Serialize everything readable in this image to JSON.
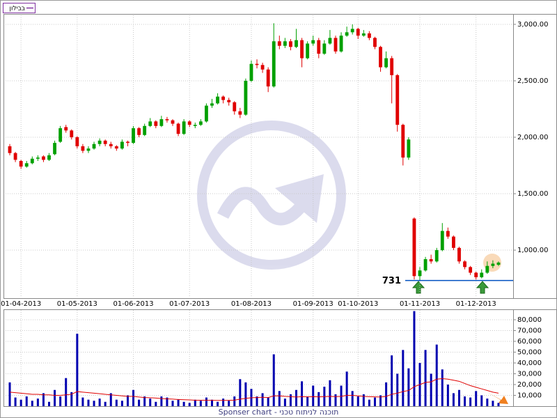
{
  "chart_data": [
    {
      "type": "candlestick",
      "series": [
        {
          "name": "בבילון",
          "up_color": "#00a000",
          "down_color": "#e00000",
          "legend_color": "#8030a0",
          "ohlc": [
            [
              1920,
              1940,
              1840,
              1860
            ],
            [
              1860,
              1870,
              1780,
              1800
            ],
            [
              1790,
              1800,
              1720,
              1740
            ],
            [
              1740,
              1790,
              1730,
              1770
            ],
            [
              1770,
              1830,
              1760,
              1810
            ],
            [
              1810,
              1840,
              1790,
              1820
            ],
            [
              1830,
              1840,
              1780,
              1800
            ],
            [
              1800,
              1860,
              1790,
              1840
            ],
            [
              1850,
              1970,
              1840,
              1950
            ],
            [
              1960,
              2100,
              1950,
              2080
            ],
            [
              2090,
              2110,
              2040,
              2060
            ],
            [
              2060,
              2070,
              1980,
              2000
            ],
            [
              2000,
              2010,
              1900,
              1920
            ],
            [
              1920,
              1940,
              1860,
              1880
            ],
            [
              1880,
              1920,
              1860,
              1900
            ],
            [
              1900,
              1960,
              1890,
              1940
            ],
            [
              1940,
              1990,
              1920,
              1970
            ],
            [
              1970,
              1980,
              1920,
              1940
            ],
            [
              1940,
              1960,
              1900,
              1920
            ],
            [
              1920,
              1930,
              1880,
              1900
            ],
            [
              1900,
              1980,
              1890,
              1960
            ],
            [
              1960,
              1970,
              1920,
              1950
            ],
            [
              1950,
              2100,
              1940,
              2080
            ],
            [
              2080,
              2090,
              2000,
              2020
            ],
            [
              2020,
              2120,
              2010,
              2100
            ],
            [
              2100,
              2170,
              2090,
              2140
            ],
            [
              2140,
              2150,
              2080,
              2100
            ],
            [
              2100,
              2190,
              2090,
              2160
            ],
            [
              2160,
              2180,
              2130,
              2150
            ],
            [
              2150,
              2160,
              2100,
              2120
            ],
            [
              2120,
              2130,
              2010,
              2030
            ],
            [
              2030,
              2160,
              2020,
              2140
            ],
            [
              2140,
              2150,
              2090,
              2110
            ],
            [
              2100,
              2130,
              2080,
              2110
            ],
            [
              2110,
              2160,
              2100,
              2140
            ],
            [
              2140,
              2300,
              2130,
              2280
            ],
            [
              2280,
              2340,
              2260,
              2300
            ],
            [
              2300,
              2390,
              2290,
              2360
            ],
            [
              2360,
              2370,
              2300,
              2330
            ],
            [
              2330,
              2350,
              2280,
              2310
            ],
            [
              2310,
              2320,
              2200,
              2230
            ],
            [
              2230,
              2260,
              2170,
              2200
            ],
            [
              2200,
              2520,
              2190,
              2500
            ],
            [
              2500,
              2680,
              2490,
              2650
            ],
            [
              2650,
              2690,
              2610,
              2640
            ],
            [
              2640,
              2660,
              2570,
              2600
            ],
            [
              2600,
              2620,
              2400,
              2450
            ],
            [
              2450,
              3010,
              2440,
              2850
            ],
            [
              2850,
              2900,
              2780,
              2810
            ],
            [
              2810,
              2880,
              2790,
              2850
            ],
            [
              2850,
              2870,
              2770,
              2800
            ],
            [
              2800,
              2960,
              2790,
              2860
            ],
            [
              2860,
              2880,
              2620,
              2700
            ],
            [
              2700,
              2850,
              2690,
              2830
            ],
            [
              2830,
              2900,
              2810,
              2860
            ],
            [
              2860,
              2880,
              2700,
              2740
            ],
            [
              2740,
              2860,
              2730,
              2830
            ],
            [
              2830,
              2950,
              2820,
              2880
            ],
            [
              2880,
              2900,
              2740,
              2760
            ],
            [
              2760,
              2930,
              2750,
              2900
            ],
            [
              2900,
              2980,
              2890,
              2930
            ],
            [
              2930,
              3000,
              2910,
              2960
            ],
            [
              2960,
              2970,
              2870,
              2900
            ],
            [
              2900,
              2950,
              2890,
              2920
            ],
            [
              2920,
              2940,
              2860,
              2880
            ],
            [
              2880,
              2890,
              2780,
              2800
            ],
            [
              2800,
              2810,
              2580,
              2620
            ],
            [
              2620,
              2760,
              2610,
              2700
            ],
            [
              2700,
              2720,
              2300,
              2550
            ],
            [
              2550,
              2560,
              2050,
              2110
            ],
            [
              2110,
              2120,
              1750,
              1820
            ],
            [
              1820,
              2000,
              1800,
              1980
            ],
            [
              1280,
              1290,
              740,
              770
            ],
            [
              770,
              850,
              731,
              820
            ],
            [
              820,
              940,
              810,
              920
            ],
            [
              920,
              960,
              880,
              900
            ],
            [
              900,
              1020,
              890,
              1000
            ],
            [
              1000,
              1240,
              990,
              1170
            ],
            [
              1170,
              1200,
              1100,
              1120
            ],
            [
              1120,
              1130,
              1000,
              1020
            ],
            [
              1020,
              1030,
              880,
              900
            ],
            [
              900,
              910,
              830,
              850
            ],
            [
              850,
              860,
              780,
              800
            ],
            [
              800,
              810,
              740,
              760
            ],
            [
              760,
              830,
              750,
              800
            ],
            [
              800,
              900,
              790,
              860
            ],
            [
              860,
              910,
              840,
              880
            ],
            [
              870,
              900,
              860,
              890
            ]
          ]
        }
      ],
      "categories": [
        null,
        null,
        "01-04-2013",
        null,
        null,
        null,
        null,
        null,
        null,
        null,
        null,
        null,
        "01-05-2013",
        null,
        null,
        null,
        null,
        null,
        null,
        null,
        null,
        null,
        "01-06-2013",
        null,
        null,
        null,
        null,
        null,
        null,
        null,
        null,
        null,
        "01-07-2013",
        null,
        null,
        null,
        null,
        null,
        null,
        null,
        null,
        null,
        null,
        "01-08-2013",
        null,
        null,
        null,
        null,
        null,
        null,
        null,
        null,
        null,
        null,
        "01-09-2013",
        null,
        null,
        null,
        null,
        null,
        null,
        null,
        "01-10-2013",
        null,
        null,
        null,
        null,
        null,
        null,
        null,
        null,
        null,
        null,
        "01-11-2013",
        null,
        null,
        null,
        null,
        null,
        null,
        null,
        null,
        null,
        "01-12-2013",
        null,
        null,
        null,
        null
      ],
      "ylim": [
        593,
        3080
      ],
      "yticks": [
        {
          "value": 1000,
          "label": "1,000.00"
        },
        {
          "value": 1500,
          "label": "1,500.00"
        },
        {
          "value": 2000,
          "label": "2,000.00"
        },
        {
          "value": 2500,
          "label": "2,500.00"
        },
        {
          "value": 3000,
          "label": "3,000.00"
        }
      ],
      "grid": true,
      "support_level": 731,
      "support_color": "#0050c0"
    },
    {
      "type": "bar",
      "series": [
        {
          "color": "#0000b0",
          "values": [
            22000,
            8000,
            6000,
            9000,
            5000,
            7000,
            12000,
            4000,
            15000,
            9000,
            26000,
            13000,
            67000,
            8000,
            6000,
            5000,
            7000,
            4000,
            12000,
            6000,
            5000,
            10000,
            15000,
            6000,
            9000,
            7000,
            4000,
            9000,
            8000,
            5000,
            6000,
            4000,
            3000,
            6000,
            5000,
            8000,
            6000,
            4000,
            7000,
            5000,
            9000,
            25000,
            22000,
            16000,
            9000,
            12000,
            8000,
            48000,
            14000,
            7000,
            11000,
            15000,
            23000,
            9000,
            19000,
            13000,
            18000,
            24000,
            11000,
            19000,
            32000,
            14000,
            9000,
            11000,
            6000,
            8000,
            10000,
            22000,
            47000,
            30000,
            52000,
            35000,
            88000,
            40000,
            52000,
            30000,
            57000,
            34000,
            20000,
            12000,
            15000,
            9000,
            8000,
            14000,
            10000,
            7000,
            5000,
            3000
          ]
        },
        {
          "type": "line",
          "color": "#e00000",
          "values": [
            13000,
            12500,
            12000,
            11500,
            11000,
            11000,
            10500,
            10500,
            10000,
            10000,
            10500,
            11000,
            13500,
            13000,
            12500,
            12000,
            11500,
            11000,
            10500,
            10000,
            9500,
            9000,
            9000,
            8500,
            8000,
            7800,
            7500,
            7000,
            6800,
            6500,
            6200,
            6000,
            5800,
            5500,
            5500,
            5500,
            5400,
            5300,
            5300,
            5400,
            5600,
            6500,
            7200,
            7800,
            8000,
            8200,
            8000,
            9500,
            9500,
            9000,
            8800,
            8500,
            8800,
            8600,
            8800,
            8600,
            8800,
            9000,
            8800,
            9000,
            10000,
            10000,
            9500,
            9000,
            8800,
            8600,
            8500,
            9000,
            11000,
            12000,
            13500,
            14500,
            18000,
            20000,
            22000,
            22500,
            25000,
            25500,
            25000,
            24000,
            23000,
            21000,
            19000,
            17500,
            16000,
            14500,
            13000,
            12000
          ]
        }
      ],
      "ylim": [
        0,
        89000
      ],
      "yticks": [
        {
          "value": 10000,
          "label": "10,000"
        },
        {
          "value": 20000,
          "label": "20,000"
        },
        {
          "value": 30000,
          "label": "30,000"
        },
        {
          "value": 40000,
          "label": "40,000"
        },
        {
          "value": 50000,
          "label": "50,000"
        },
        {
          "value": 60000,
          "label": "60,000"
        },
        {
          "value": 70000,
          "label": "70,000"
        },
        {
          "value": 80000,
          "label": "80,000"
        }
      ],
      "grid": true
    }
  ],
  "footer": "Sponser chart - תוכנה לניתוח טכני"
}
